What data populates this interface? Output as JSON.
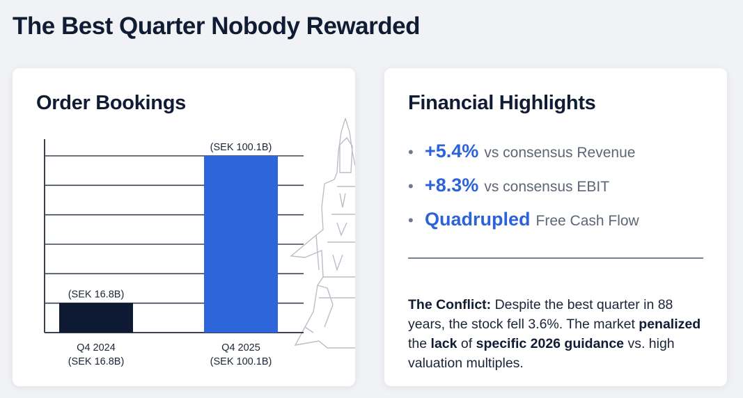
{
  "page": {
    "title": "The Best Quarter Nobody Rewarded"
  },
  "left_card": {
    "title": "Order Bookings"
  },
  "chart_data": {
    "type": "bar",
    "categories": [
      "Q4 2024",
      "Q4 2025"
    ],
    "category_sublabels": [
      "(SEK 16.8B)",
      "(SEK 100.1B)"
    ],
    "values": [
      16.8,
      100.1
    ],
    "data_labels": [
      "(SEK 16.8B)",
      "(SEK 100.1B)"
    ],
    "bar_colors": [
      "#0e1a33",
      "#2d66db"
    ],
    "grid": true,
    "title": "Order Bookings"
  },
  "right_card": {
    "title": "Financial Highlights",
    "bullets": [
      {
        "value": "+5.4%",
        "label": "vs consensus Revenue"
      },
      {
        "value": "+8.3%",
        "label": "vs consensus EBIT"
      },
      {
        "value": "Quadrupled",
        "label": "Free Cash Flow"
      }
    ],
    "conflict": {
      "lead": "The Conflict:",
      "t1": " Despite the best quarter in 88 years, the stock fell 3.6%. The market ",
      "b1": "penalized",
      "t2": " the ",
      "b2": "lack",
      "t3": " of ",
      "b3": "specific 2026 guidance",
      "t4": " vs. high valuation multiples."
    }
  },
  "colors": {
    "accent": "#2c63d8",
    "dark": "#0f1c33",
    "muted": "#5d6676"
  },
  "icons": [
    "bullet-dot-icon",
    "fighter-jet-illustration"
  ]
}
